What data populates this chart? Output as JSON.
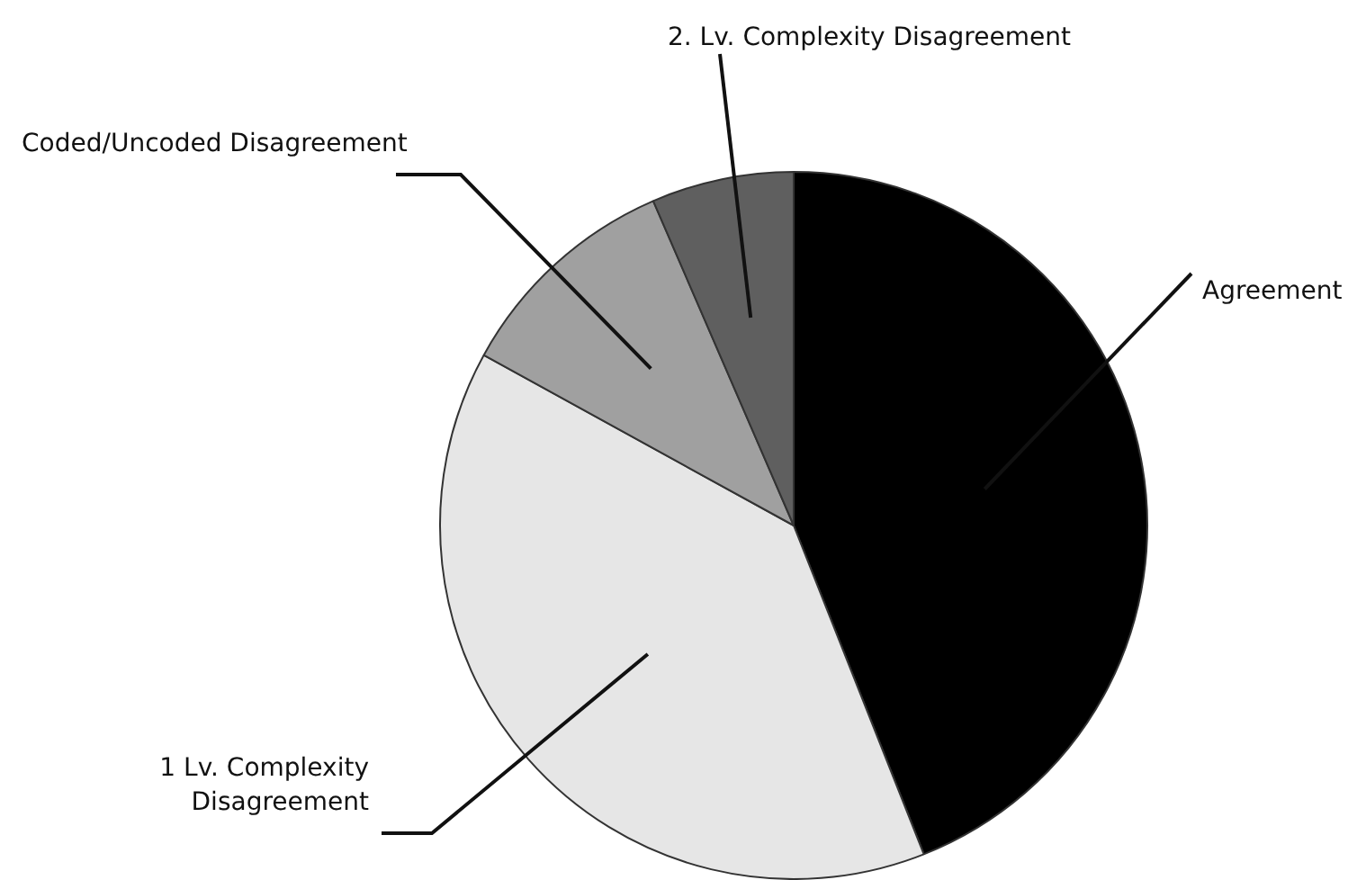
{
  "chart_data": {
    "type": "pie",
    "categories": [
      "Agreement",
      "1 Lv. Complexity Disagreement",
      "Coded/Uncoded Disagreement",
      "2. Lv. Complexity Disagreement"
    ],
    "values": [
      44,
      39,
      10.5,
      6.5
    ],
    "colors": [
      "#000000",
      "#e6e6e6",
      "#a0a0a0",
      "#5f5f5f"
    ],
    "legend": false
  }
}
